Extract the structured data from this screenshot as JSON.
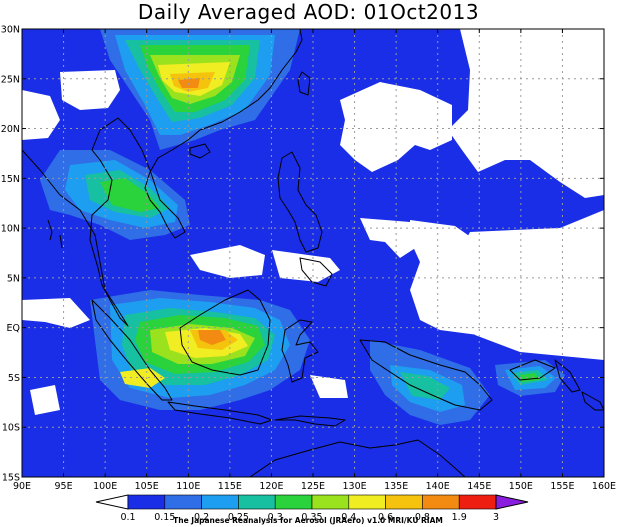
{
  "title": "Daily Averaged AOD: 01Oct2013",
  "credit": "The Japanese Reanalysis for Aerosol (JRAero) v1.0 MRI/KU RIAM",
  "map": {
    "lon_range": [
      90,
      160
    ],
    "lat_range": [
      -15,
      30
    ],
    "lon_ticks": [
      "90E",
      "95E",
      "100E",
      "105E",
      "110E",
      "115E",
      "120E",
      "125E",
      "130E",
      "135E",
      "140E",
      "145E",
      "150E",
      "155E",
      "160E"
    ],
    "lat_ticks": [
      "15S",
      "10S",
      "5S",
      "EQ",
      "5N",
      "10N",
      "15N",
      "20N",
      "25N",
      "30N"
    ],
    "grid": true
  },
  "colorbar": {
    "labels": [
      "0.1",
      "0.15",
      "0.2",
      "0.25",
      "0.3",
      "0.35",
      "0.4",
      "0.6",
      "0.8",
      "1.9",
      "3"
    ],
    "colors": [
      "#1a2ee8",
      "#2f6ee6",
      "#1d9ef0",
      "#17c0a0",
      "#2ad23c",
      "#9be21e",
      "#f0ee22",
      "#f5c30e",
      "#f38a12",
      "#ee1e10",
      "#8a1ee0"
    ],
    "below_color": "#ffffff"
  }
}
